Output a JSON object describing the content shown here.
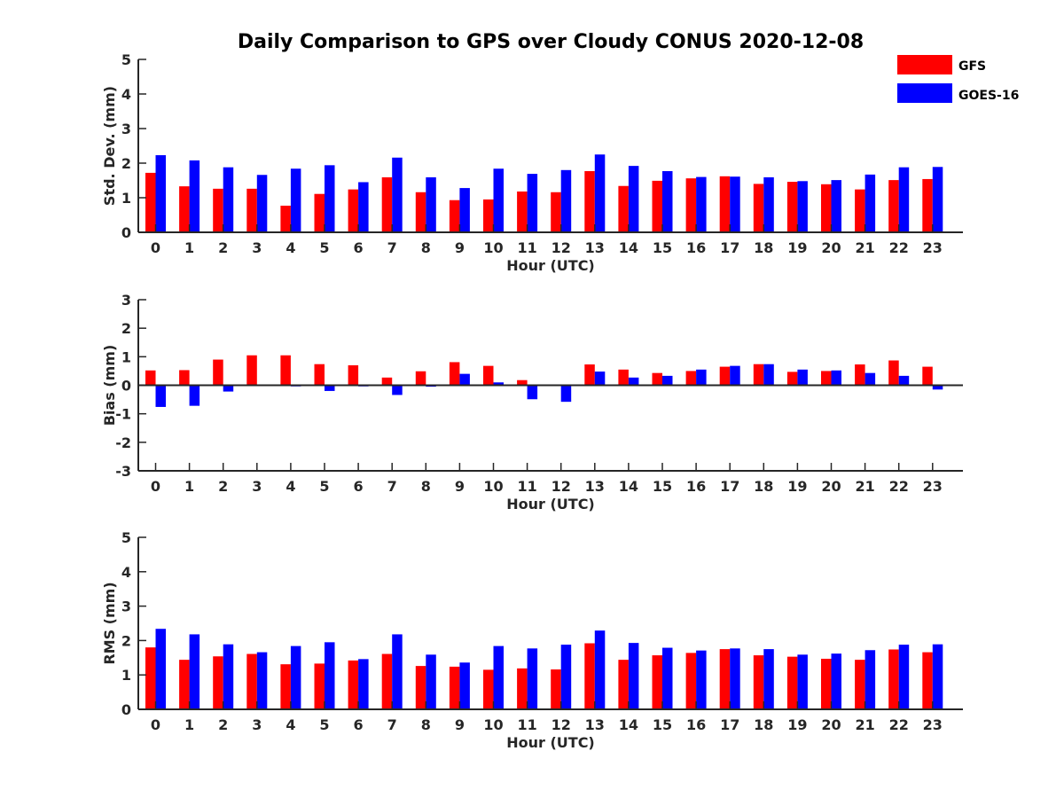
{
  "title": "Daily Comparison to GPS over Cloudy CONUS 2020-12-08",
  "legend": {
    "placement": "top-right",
    "items": [
      {
        "label": "GFS",
        "color": "#ff0000"
      },
      {
        "label": "GOES-16",
        "color": "#0000ff"
      }
    ]
  },
  "chart_data": [
    {
      "type": "bar",
      "categories": [
        "0",
        "1",
        "2",
        "3",
        "4",
        "5",
        "6",
        "7",
        "8",
        "9",
        "10",
        "11",
        "12",
        "13",
        "14",
        "15",
        "16",
        "17",
        "18",
        "19",
        "20",
        "21",
        "22",
        "23"
      ],
      "xlabel": "Hour (UTC)",
      "ylabel": "Std. Dev. (mm)",
      "ylim": [
        0,
        5
      ],
      "yticks": [
        "0",
        "1",
        "2",
        "3",
        "4",
        "5"
      ],
      "grid": false,
      "series": [
        {
          "name": "GFS",
          "color": "#ff0000",
          "values": [
            1.72,
            1.33,
            1.26,
            1.26,
            0.77,
            1.11,
            1.24,
            1.59,
            1.16,
            0.93,
            0.95,
            1.18,
            1.16,
            1.77,
            1.34,
            1.49,
            1.56,
            1.62,
            1.4,
            1.46,
            1.39,
            1.24,
            1.51,
            1.54
          ]
        },
        {
          "name": "GOES-16",
          "color": "#0000ff",
          "values": [
            2.23,
            2.08,
            1.88,
            1.66,
            1.84,
            1.94,
            1.45,
            2.16,
            1.59,
            1.28,
            1.84,
            1.69,
            1.8,
            2.25,
            1.92,
            1.77,
            1.6,
            1.61,
            1.59,
            1.48,
            1.51,
            1.67,
            1.88,
            1.89
          ]
        }
      ]
    },
    {
      "type": "bar",
      "categories": [
        "0",
        "1",
        "2",
        "3",
        "4",
        "5",
        "6",
        "7",
        "8",
        "9",
        "10",
        "11",
        "12",
        "13",
        "14",
        "15",
        "16",
        "17",
        "18",
        "19",
        "20",
        "21",
        "22",
        "23"
      ],
      "xlabel": "Hour (UTC)",
      "ylabel": "Bias (mm)",
      "ylim": [
        -3,
        3
      ],
      "yticks": [
        "-3",
        "-2",
        "-1",
        "0",
        "1",
        "2",
        "3"
      ],
      "zero_line": true,
      "grid": false,
      "series": [
        {
          "name": "GFS",
          "color": "#ff0000",
          "values": [
            0.52,
            0.53,
            0.9,
            1.05,
            1.05,
            0.74,
            0.7,
            0.27,
            0.49,
            0.81,
            0.68,
            0.18,
            0.02,
            0.73,
            0.55,
            0.43,
            0.5,
            0.65,
            0.74,
            0.47,
            0.5,
            0.73,
            0.87,
            0.65
          ]
        },
        {
          "name": "GOES-16",
          "color": "#0000ff",
          "values": [
            -0.76,
            -0.72,
            -0.22,
            0.0,
            -0.04,
            -0.2,
            -0.04,
            -0.34,
            -0.05,
            0.4,
            0.1,
            -0.49,
            -0.58,
            0.48,
            0.27,
            0.33,
            0.55,
            0.68,
            0.74,
            0.55,
            0.52,
            0.43,
            0.33,
            -0.15
          ]
        }
      ]
    },
    {
      "type": "bar",
      "categories": [
        "0",
        "1",
        "2",
        "3",
        "4",
        "5",
        "6",
        "7",
        "8",
        "9",
        "10",
        "11",
        "12",
        "13",
        "14",
        "15",
        "16",
        "17",
        "18",
        "19",
        "20",
        "21",
        "22",
        "23"
      ],
      "xlabel": "Hour (UTC)",
      "ylabel": "RMS (mm)",
      "ylim": [
        0,
        5
      ],
      "yticks": [
        "0",
        "1",
        "2",
        "3",
        "4",
        "5"
      ],
      "grid": false,
      "series": [
        {
          "name": "GFS",
          "color": "#ff0000",
          "values": [
            1.8,
            1.44,
            1.54,
            1.61,
            1.31,
            1.33,
            1.42,
            1.61,
            1.26,
            1.24,
            1.15,
            1.19,
            1.16,
            1.92,
            1.44,
            1.57,
            1.64,
            1.75,
            1.57,
            1.53,
            1.47,
            1.44,
            1.74,
            1.66
          ]
        },
        {
          "name": "GOES-16",
          "color": "#0000ff",
          "values": [
            2.34,
            2.18,
            1.89,
            1.66,
            1.84,
            1.95,
            1.46,
            2.18,
            1.59,
            1.36,
            1.84,
            1.77,
            1.88,
            2.29,
            1.93,
            1.79,
            1.71,
            1.77,
            1.75,
            1.59,
            1.62,
            1.72,
            1.88,
            1.89
          ]
        }
      ]
    }
  ]
}
